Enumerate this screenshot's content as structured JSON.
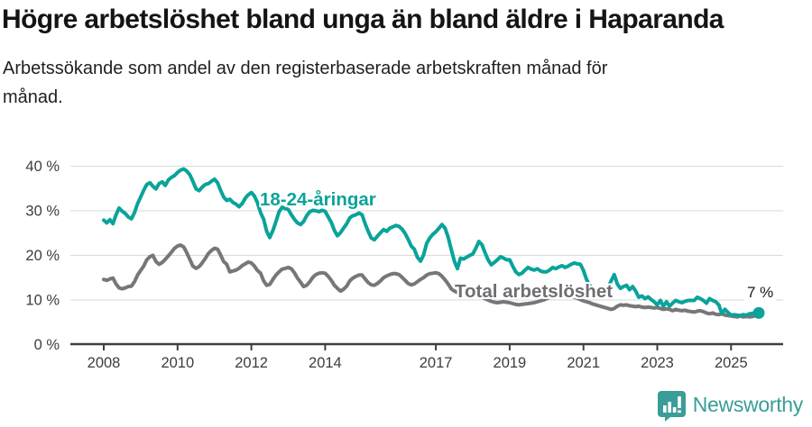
{
  "header": {
    "title": "Högre arbetslöshet bland unga än bland äldre i Haparanda",
    "subtitle": "Arbetssökande som andel av den registerbaserade arbetskraften månad för månad."
  },
  "chart_data": {
    "type": "line",
    "x_start_year": 2008,
    "x_frequency": "monthly",
    "xlim": [
      2007.6,
      2026.3
    ],
    "ylim": [
      0,
      42
    ],
    "grid": "horizontal",
    "y_ticks": [
      0,
      10,
      20,
      30,
      40
    ],
    "y_tick_suffix": " %",
    "x_ticks": [
      2008,
      2010,
      2012,
      2014,
      2017,
      2019,
      2021,
      2023,
      2025
    ],
    "end_annotation": "7 %",
    "series": [
      {
        "name": "total",
        "label": "Total arbetslöshet",
        "color": "#77777b",
        "values": [
          14.5,
          14.3,
          14.6,
          14.8,
          13.5,
          12.6,
          12.4,
          12.6,
          12.9,
          13.0,
          14.0,
          15.5,
          16.5,
          17.5,
          18.9,
          19.6,
          19.9,
          18.5,
          17.9,
          18.3,
          19.0,
          19.8,
          20.6,
          21.5,
          22.0,
          22.2,
          21.8,
          20.5,
          19.0,
          17.5,
          17.0,
          17.4,
          18.2,
          19.2,
          20.3,
          21.0,
          21.5,
          21.3,
          20.0,
          18.5,
          17.9,
          16.2,
          16.4,
          16.6,
          17.0,
          17.6,
          18.0,
          18.4,
          18.2,
          17.5,
          16.5,
          15.9,
          14.2,
          13.2,
          13.4,
          14.5,
          15.5,
          16.2,
          16.8,
          17.0,
          17.2,
          16.9,
          16.0,
          14.8,
          13.9,
          12.9,
          13.2,
          14.0,
          15.0,
          15.6,
          15.9,
          16.0,
          15.9,
          15.2,
          14.3,
          13.2,
          12.5,
          11.9,
          12.3,
          13.0,
          14.2,
          14.8,
          15.2,
          15.5,
          15.5,
          14.6,
          13.8,
          13.3,
          13.2,
          13.6,
          14.2,
          14.9,
          15.3,
          15.6,
          15.8,
          15.8,
          15.6,
          15.0,
          14.3,
          13.6,
          13.3,
          13.5,
          14.0,
          14.5,
          14.9,
          15.5,
          15.8,
          15.9,
          16.0,
          15.8,
          15.2,
          14.4,
          13.5,
          12.4,
          11.9,
          11.6,
          11.5,
          11.6,
          11.8,
          11.7,
          11.5,
          11.3,
          11.0,
          10.6,
          10.2,
          9.9,
          9.6,
          9.4,
          9.3,
          9.4,
          9.5,
          9.4,
          9.3,
          9.1,
          8.9,
          8.8,
          8.9,
          9.0,
          9.1,
          9.2,
          9.3,
          9.5,
          9.7,
          9.9,
          10.2,
          10.5,
          10.9,
          11.3,
          11.4,
          11.3,
          11.1,
          10.9,
          10.7,
          10.5,
          10.3,
          10.0,
          9.7,
          9.5,
          9.3,
          9.0,
          8.8,
          8.6,
          8.4,
          8.2,
          8.0,
          7.8,
          8.0,
          8.5,
          8.8,
          8.7,
          8.8,
          8.6,
          8.5,
          8.4,
          8.5,
          8.3,
          8.2,
          8.3,
          8.2,
          8.1,
          8.2,
          8.0,
          7.8,
          7.9,
          7.8,
          7.5,
          7.8,
          7.6,
          7.5,
          7.6,
          7.4,
          7.3,
          7.2,
          7.4,
          7.5,
          7.3,
          7.0,
          6.8,
          7.0,
          6.7,
          6.6,
          6.8,
          6.5,
          6.4,
          6.3,
          6.2,
          6.1,
          6.3,
          6.1,
          6.2,
          6.1,
          6.2,
          6.4,
          6.5
        ]
      },
      {
        "name": "young",
        "label": "18-24-åringar",
        "color": "#0aa39a",
        "end_dot": true,
        "values": [
          27.8,
          27.2,
          27.9,
          27.0,
          29.0,
          30.5,
          29.8,
          29.3,
          28.5,
          28.1,
          29.5,
          31.5,
          33.0,
          34.5,
          35.8,
          36.2,
          35.4,
          34.8,
          36.0,
          36.4,
          35.6,
          36.8,
          37.4,
          37.8,
          38.5,
          39.0,
          39.3,
          38.8,
          38.0,
          36.5,
          34.8,
          34.4,
          35.2,
          35.8,
          36.0,
          36.5,
          37.0,
          36.2,
          34.5,
          33.0,
          32.2,
          32.5,
          31.8,
          31.4,
          30.8,
          31.5,
          32.7,
          33.5,
          34.0,
          33.2,
          31.7,
          29.5,
          28.0,
          25.3,
          23.9,
          25.5,
          27.5,
          29.7,
          30.7,
          30.4,
          30.2,
          29.0,
          28.0,
          27.2,
          26.8,
          27.5,
          28.8,
          29.7,
          30.0,
          29.9,
          29.7,
          30.0,
          29.8,
          28.5,
          27.3,
          25.5,
          24.3,
          25.0,
          26.0,
          27.0,
          28.3,
          28.8,
          29.0,
          29.4,
          29.0,
          27.0,
          25.3,
          23.8,
          23.4,
          24.2,
          25.0,
          25.7,
          25.3,
          26.0,
          26.3,
          26.6,
          26.4,
          25.8,
          24.8,
          23.5,
          22.0,
          21.3,
          19.5,
          18.6,
          20.0,
          22.6,
          23.8,
          24.6,
          25.2,
          26.0,
          26.8,
          26.0,
          24.0,
          21.3,
          18.6,
          16.9,
          19.3,
          19.1,
          19.5,
          19.9,
          20.2,
          21.5,
          23.0,
          22.3,
          20.5,
          18.9,
          17.8,
          18.3,
          18.9,
          19.6,
          19.3,
          18.9,
          18.9,
          17.5,
          16.2,
          15.6,
          15.9,
          16.6,
          17.2,
          16.8,
          16.6,
          16.9,
          16.4,
          16.2,
          16.2,
          16.6,
          17.2,
          16.9,
          17.3,
          17.6,
          17.2,
          17.5,
          17.9,
          18.2,
          18.0,
          17.9,
          16.5,
          14.5,
          13.2,
          12.4,
          11.8,
          11.5,
          11.8,
          12.2,
          12.8,
          14.2,
          15.6,
          13.5,
          12.5,
          12.9,
          13.2,
          12.2,
          12.9,
          11.9,
          10.5,
          10.8,
          10.2,
          10.6,
          10.0,
          9.5,
          8.8,
          9.8,
          8.5,
          9.5,
          8.5,
          9.2,
          9.8,
          9.5,
          9.3,
          9.6,
          9.8,
          9.8,
          9.8,
          10.5,
          10.2,
          9.8,
          9.2,
          10.2,
          9.8,
          9.5,
          8.8,
          6.8,
          7.8,
          7.1,
          6.5,
          6.6,
          6.5,
          6.4,
          6.6,
          6.5,
          6.8,
          6.9,
          7.0,
          7.0
        ]
      }
    ],
    "colors": {
      "grid": "#dadada",
      "axis": "#3f3f3f",
      "tick_text": "#3d3d3d"
    }
  },
  "footer": {
    "brand": "Newsworthy",
    "brand_color": "#3a9d97"
  }
}
